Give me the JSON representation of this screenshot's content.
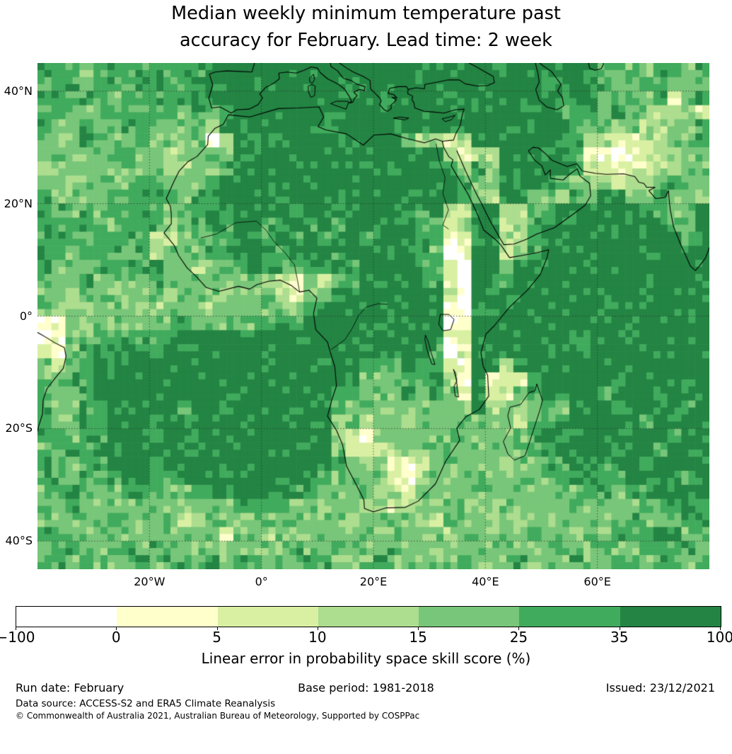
{
  "chart_data": {
    "type": "heatmap",
    "title": "Median weekly minimum temperature past accuracy for February. Lead time: 2 week",
    "title_line1": "Median weekly minimum temperature past",
    "title_line2": "accuracy for February. Lead time: 2 week",
    "extent": {
      "lon_min": -40,
      "lon_max": 80,
      "lat_min": -45,
      "lat_max": 45
    },
    "x_ticks": [
      {
        "label": "20°W",
        "lon": -20
      },
      {
        "label": "0°",
        "lon": 0
      },
      {
        "label": "20°E",
        "lon": 20
      },
      {
        "label": "40°E",
        "lon": 40
      },
      {
        "label": "60°E",
        "lon": 60
      }
    ],
    "y_ticks": [
      {
        "label": "40°N",
        "lat": 40
      },
      {
        "label": "20°N",
        "lat": 20
      },
      {
        "label": "0°",
        "lat": 0
      },
      {
        "label": "20°S",
        "lat": -20
      },
      {
        "label": "40°S",
        "lat": -40
      }
    ],
    "colorbar": {
      "label": "Linear error in probability space skill score (%)",
      "boundaries": [
        -100,
        0,
        5,
        10,
        15,
        25,
        35,
        100
      ],
      "tick_labels": [
        "−100",
        "0",
        "5",
        "10",
        "15",
        "25",
        "35",
        "100"
      ],
      "colors": [
        "#ffffff",
        "#ffffcc",
        "#d9f0a3",
        "#addd8e",
        "#78c679",
        "#41ab5d",
        "#238443"
      ]
    },
    "grid": {
      "cols": 48,
      "rows": 36,
      "cell_deg": 2.5,
      "colors": [
        "#ffffff",
        "#ffffcc",
        "#d9f0a3",
        "#addd8e",
        "#78c679",
        "#41ab5d",
        "#238443"
      ],
      "rows_data": [
        "555455555555666666666666666666666666666655445545",
        "455455555556666666666666666666666666556654455444",
        "554554555555666666666666666666666666666645545245",
        "555455555545456666666666666666666666655546443342",
        "544544554444366666666666666666666666665443433445",
        "444544454444036666666666665332366666665332233445",
        "444444544344446666666666666663233666665110123344",
        "344444444334456666666666666665354666665221223344",
        "443444455444566666666666666666544666654432334544",
        "544444555545566666666666666666543664435466445444",
        "554545555455666666566656666563266334566666655446",
        "555554555345656655656566666552366235666666666546",
        "555455552245556656565665666551266325666666666656",
        "554555453444556665656566666540166245666666666666",
        "544455555443445655455656666552066466666666666666",
        "444544445444444432142456666651066566666666666666",
        "443444344344444443244566666662065666666666666666",
        "433344433444344444456666666661066666666666666666",
        "114344444454444445566666666660166666666666666666",
        "014455555566666666666666666661266666666666666666",
        "214555665666666666666666666650266666666666666666",
        "424566666666666666666665556552166366666666666666",
        "445566666666666666666654455553161225666665666666",
        "544566666666666666666554445454262245656656666666",
        "544556666656666666666544444444363434546665666656",
        "544556665666666666666443443444444424566666656666",
        "554556665666666566666321344444444445666666666566",
        "455566666656666666666422234444444445566665665666",
        "544556665666666666666543321244444444556656656666",
        "554555665566666666665444421344444444455655666656",
        "456544555445556666554444332444444444444554556666",
        "445444444444445555444443423444444444444444455565",
        "444445444423444444444434444324443444444444544455",
        "544444444444424434444444444443444445444445556645",
        "455444545444444444544544454444444444454454455554",
        "554544454554545444455444544444544454445445545545"
      ]
    }
  },
  "footer": {
    "run_date": "Run date: February",
    "base_period": "Base period: 1981-2018",
    "issued": "Issued: 23/12/2021",
    "data_source": "Data source: ACCESS-S2 and ERA5 Climate Reanalysis",
    "copyright": "© Commonwealth of Australia 2021, Australian Bureau of Meteorology, Supported by COSPPac"
  }
}
